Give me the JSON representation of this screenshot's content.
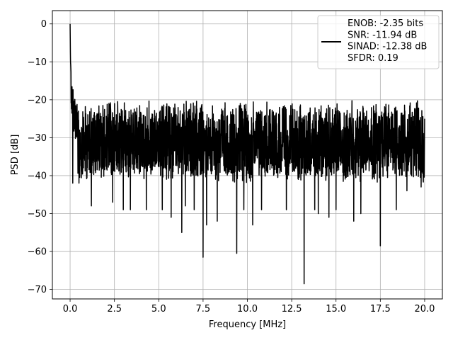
{
  "chart_data": {
    "type": "line",
    "xlabel": "Frequency [MHz]",
    "ylabel": "PSD [dB]",
    "xlim": [
      -1.0,
      21.0
    ],
    "ylim": [
      -72.5,
      3.5
    ],
    "xticks": [
      0.0,
      2.5,
      5.0,
      7.5,
      10.0,
      12.5,
      15.0,
      17.5,
      20.0
    ],
    "xtick_labels": [
      "0.0",
      "2.5",
      "5.0",
      "7.5",
      "10.0",
      "12.5",
      "15.0",
      "17.5",
      "20.0"
    ],
    "yticks": [
      0,
      -10,
      -20,
      -30,
      -40,
      -50,
      -60,
      -70
    ],
    "ytick_labels": [
      "0",
      "−10",
      "−20",
      "−30",
      "−40",
      "−50",
      "−60",
      "−70"
    ],
    "grid": true,
    "legend_position": "top-right",
    "line_color": "#000000",
    "legend_lines": [
      "ENOB: -2.35 bits",
      "SNR: -11.94 dB",
      "SINAD: -12.38 dB",
      "SFDR: 0.19"
    ],
    "series": [
      {
        "x_start": 0.0,
        "x_end": 20.0,
        "peak": {
          "x": 0.0,
          "y": 0.0
        },
        "low_freq_decay": [
          {
            "x": 0.0,
            "y": 0.0
          },
          {
            "x": 0.02,
            "y": -8.0
          },
          {
            "x": 0.05,
            "y": -11.0
          },
          {
            "x": 0.1,
            "y": -14.0
          },
          {
            "x": 0.2,
            "y": -17.0
          },
          {
            "x": 0.4,
            "y": -20.0
          }
        ],
        "noise_floor_top": -22.0,
        "noise_floor_bottom": -40.0,
        "deep_nulls": [
          {
            "x": 0.15,
            "y": -42.0
          },
          {
            "x": 0.5,
            "y": -42.0
          },
          {
            "x": 1.2,
            "y": -48.0
          },
          {
            "x": 2.4,
            "y": -47.0
          },
          {
            "x": 3.0,
            "y": -49.0
          },
          {
            "x": 3.4,
            "y": -49.0
          },
          {
            "x": 4.3,
            "y": -49.0
          },
          {
            "x": 5.2,
            "y": -49.0
          },
          {
            "x": 5.7,
            "y": -51.0
          },
          {
            "x": 6.3,
            "y": -55.0
          },
          {
            "x": 6.5,
            "y": -48.0
          },
          {
            "x": 7.0,
            "y": -49.0
          },
          {
            "x": 7.5,
            "y": -61.5
          },
          {
            "x": 7.7,
            "y": -53.0
          },
          {
            "x": 8.3,
            "y": -52.0
          },
          {
            "x": 9.4,
            "y": -60.5
          },
          {
            "x": 9.8,
            "y": -49.0
          },
          {
            "x": 10.3,
            "y": -53.0
          },
          {
            "x": 10.8,
            "y": -49.0
          },
          {
            "x": 12.2,
            "y": -49.0
          },
          {
            "x": 13.2,
            "y": -68.5
          },
          {
            "x": 13.8,
            "y": -49.0
          },
          {
            "x": 14.0,
            "y": -50.0
          },
          {
            "x": 14.6,
            "y": -51.0
          },
          {
            "x": 15.0,
            "y": -49.0
          },
          {
            "x": 16.0,
            "y": -52.0
          },
          {
            "x": 16.4,
            "y": -50.0
          },
          {
            "x": 17.5,
            "y": -58.5
          },
          {
            "x": 18.4,
            "y": -49.0
          },
          {
            "x": 19.0,
            "y": -44.0
          },
          {
            "x": 19.8,
            "y": -43.0
          }
        ],
        "end_value": {
          "x": 20.0,
          "y": -25.0
        }
      }
    ]
  }
}
